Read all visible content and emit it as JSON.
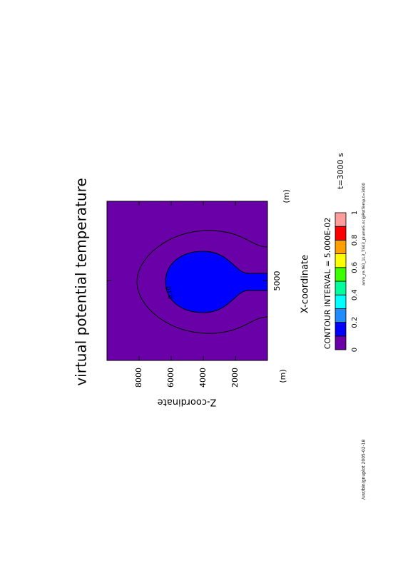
{
  "chart_data": {
    "type": "contour",
    "title": "virtual potential temperature",
    "x_label": "X-coordinate",
    "y_label": "Z-coordinate",
    "x_unit": "(m)",
    "y_unit": "(m)",
    "xlim": [
      0,
      10000
    ],
    "ylim": [
      0,
      10000
    ],
    "xticks": [
      5000
    ],
    "yticks": [
      2000,
      4000,
      6000,
      8000
    ],
    "background_color": "#6a00a8",
    "fill_color": "#0000ff",
    "contour_levels": [
      0.05,
      0.1
    ],
    "contour_label": "0.10",
    "contour_interval_text": "CONTOUR INTERVAL = 5.000E-02",
    "time_label": "t=3000 s",
    "colorbar": {
      "levels": [
        0,
        0.1,
        0.2,
        0.3,
        0.4,
        0.5,
        0.6,
        0.7,
        0.8,
        0.9,
        1
      ],
      "colors": [
        "#6a00a8",
        "#0000ff",
        "#1e8cff",
        "#00ffff",
        "#00ff9c",
        "#3cff00",
        "#ffff00",
        "#ffa000",
        "#ff0000",
        "#ff9c9c"
      ],
      "ticks": [
        0,
        0.2,
        0.4,
        0.6,
        0.8,
        1
      ]
    }
  },
  "footer": {
    "left": "/usr/bin/gnuplot  2005-02-18",
    "right": "anm_re-f60_1L3_TS03_plume5.nc@PotTemp,t=3000"
  }
}
